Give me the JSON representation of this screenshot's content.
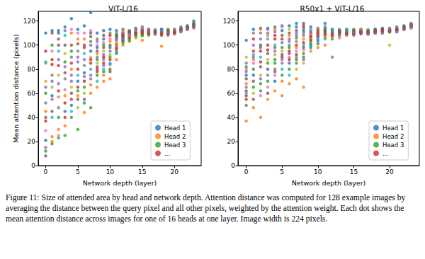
{
  "chart_data": [
    {
      "type": "scatter",
      "title": "ViT-L/16",
      "x_label": "Network depth (layer)",
      "y_label": "Mean attention distance (pixels)",
      "x": [
        0,
        1,
        2,
        3,
        4,
        5,
        6,
        7,
        8,
        9,
        10,
        11,
        12,
        13,
        14,
        15,
        16,
        17,
        18,
        19,
        20,
        21,
        22,
        23
      ],
      "xlim": [
        -1.15,
        24.15
      ],
      "xticks": [
        0,
        5,
        10,
        15,
        20
      ],
      "ylim": [
        0,
        128
      ],
      "yticks": [
        0,
        20,
        40,
        60,
        80,
        100,
        120
      ],
      "grid": false,
      "legend": "lower right",
      "series": [
        {
          "name": "Head 1",
          "color": "#1f77b4",
          "values": [
            110,
            112,
            112,
            115,
            122,
            113,
            116,
            127,
            110,
            112,
            113,
            112,
            113,
            112,
            114,
            115,
            113,
            112,
            113,
            112,
            113,
            115,
            116,
            120
          ]
        },
        {
          "name": "Head 2",
          "color": "#ff7f0e",
          "values": [
            85,
            20,
            30,
            33,
            80,
            58,
            44,
            60,
            65,
            70,
            72,
            88,
            100,
            103,
            106,
            104,
            108,
            109,
            99,
            108,
            110,
            112,
            113,
            114
          ]
        },
        {
          "name": "Head 3",
          "color": "#2ca02c",
          "values": [
            60,
            18,
            23,
            25,
            40,
            30,
            52,
            48,
            75,
            78,
            80,
            95,
            104,
            106,
            108,
            108,
            110,
            110,
            108,
            110,
            111,
            113,
            114,
            115
          ]
        },
        {
          "name": "...",
          "color": "#d62728",
          "values": [
            37,
            84,
            62,
            52,
            55,
            65,
            70,
            85,
            80,
            85,
            88,
            100,
            107,
            108,
            110,
            110,
            111,
            111,
            110,
            111,
            112,
            114,
            115,
            116
          ]
        },
        {
          "color": "#9467bd",
          "values": [
            15,
            55,
            88,
            82,
            75,
            86,
            88,
            100,
            90,
            92,
            95,
            104,
            110,
            110,
            111,
            112,
            112,
            112,
            111,
            109,
            110,
            112,
            113,
            117
          ]
        },
        {
          "color": "#8c564b",
          "values": [
            8,
            110,
            105,
            100,
            100,
            101,
            100,
            107,
            95,
            98,
            100,
            108,
            109,
            111,
            112,
            111,
            109,
            110,
            112,
            112,
            111,
            113,
            114,
            118
          ]
        },
        {
          "color": "#e377c2",
          "values": [
            29,
            95,
            25,
            63,
            113,
            110,
            110,
            112,
            100,
            102,
            105,
            110,
            105,
            107,
            109,
            113,
            113,
            113,
            109,
            110,
            109,
            111,
            115,
            115
          ]
        },
        {
          "color": "#7f7f7f",
          "values": [
            52,
            75,
            48,
            72,
            90,
            95,
            83,
            72,
            105,
            88,
            110,
            98,
            108,
            109,
            113,
            109,
            110,
            111,
            111,
            111,
            112,
            114,
            113,
            116
          ]
        },
        {
          "color": "#bcbd22",
          "values": [
            70,
            65,
            75,
            93,
            65,
            48,
            60,
            90,
            85,
            95,
            92,
            102,
            111,
            105,
            107,
            110,
            111,
            109,
            110,
            112,
            111,
            113,
            114,
            117
          ]
        },
        {
          "color": "#17becf",
          "values": [
            86,
            40,
            95,
            108,
            45,
            75,
            93,
            80,
            70,
            80,
            85,
            106,
            103,
            112,
            111,
            112,
            112,
            112,
            112,
            110,
            110,
            112,
            116,
            116
          ]
        },
        {
          "color": "#1f77b4",
          "values": [
            21,
            58,
            110,
            45,
            50,
            70,
            77,
            95,
            98,
            105,
            98,
            93,
            106,
            110,
            110,
            111,
            110,
            110,
            113,
            109,
            112,
            113,
            114,
            115
          ]
        },
        {
          "color": "#ff7f0e",
          "values": [
            45,
            24,
            57,
            58,
            110,
            105,
            105,
            67,
            93,
            75,
            103,
            101,
            112,
            108,
            112,
            114,
            111,
            111,
            110,
            111,
            113,
            114,
            113,
            117
          ]
        },
        {
          "color": "#2ca02c",
          "values": [
            12,
            100,
            40,
            86,
            95,
            62,
            65,
            103,
            88,
            100,
            90,
            109,
            102,
            104,
            108,
            108,
            109,
            112,
            111,
            113,
            111,
            112,
            115,
            118
          ]
        },
        {
          "color": "#d62728",
          "values": [
            95,
            88,
            83,
            40,
            85,
            80,
            98,
            88,
            78,
            90,
            108,
            97,
            108,
            111,
            110,
            110,
            112,
            110,
            109,
            110,
            110,
            113,
            114,
            116
          ]
        },
        {
          "color": "#9467bd",
          "values": [
            65,
            70,
            68,
            112,
            70,
            90,
            74,
            75,
            103,
            83,
            84,
            105,
            110,
            109,
            113,
            113,
            113,
            109,
            112,
            111,
            112,
            111,
            113,
            115
          ]
        },
        {
          "color": "#8c564b",
          "values": [
            40,
            45,
            100,
            77,
            60,
            55,
            55,
            110,
            82,
            108,
            78,
            107,
            104,
            106,
            109,
            112,
            110,
            111,
            110,
            112,
            111,
            113,
            115,
            117
          ]
        }
      ]
    },
    {
      "type": "scatter",
      "title": "R50x1 + ViT-L/16",
      "x_label": "Network depth (layer)",
      "x": [
        0,
        1,
        2,
        3,
        4,
        5,
        6,
        7,
        8,
        9,
        10,
        11,
        12,
        13,
        14,
        15,
        16,
        17,
        18,
        19,
        20,
        21,
        22,
        23
      ],
      "xlim": [
        -1.15,
        24.15
      ],
      "xticks": [
        0,
        5,
        10,
        15,
        20
      ],
      "ylim": [
        0,
        128
      ],
      "yticks": [
        0,
        20,
        40,
        60,
        80,
        100,
        120
      ],
      "grid": false,
      "legend": "lower right",
      "series": [
        {
          "name": "Head 1",
          "color": "#1f77b4",
          "values": [
            104,
            113,
            114,
            114,
            115,
            116,
            116,
            118,
            118,
            115,
            114,
            118,
            113,
            112,
            113,
            112,
            113,
            112,
            113,
            114,
            114,
            115,
            116,
            118
          ]
        },
        {
          "name": "Head 2",
          "color": "#ff7f0e",
          "values": [
            37,
            48,
            40,
            55,
            62,
            58,
            68,
            72,
            65,
            95,
            98,
            100,
            111,
            106,
            108,
            108,
            110,
            109,
            110,
            110,
            111,
            112,
            113,
            114
          ]
        },
        {
          "name": "Head 3",
          "color": "#2ca02c",
          "values": [
            50,
            80,
            68,
            85,
            88,
            75,
            80,
            85,
            90,
            100,
            105,
            106,
            105,
            109,
            110,
            110,
            111,
            110,
            111,
            112,
            112,
            113,
            114,
            115
          ]
        },
        {
          "name": "...",
          "color": "#d62728",
          "values": [
            58,
            95,
            95,
            100,
            105,
            90,
            95,
            100,
            102,
            105,
            108,
            109,
            108,
            110,
            111,
            111,
            112,
            111,
            112,
            113,
            113,
            114,
            115,
            116
          ]
        },
        {
          "color": "#9467bd",
          "values": [
            65,
            100,
            105,
            110,
            111,
            102,
            105,
            108,
            110,
            108,
            110,
            112,
            110,
            111,
            112,
            109,
            110,
            112,
            110,
            111,
            112,
            112,
            113,
            117
          ]
        },
        {
          "color": "#8c564b",
          "values": [
            72,
            70,
            82,
            93,
            98,
            108,
            110,
            112,
            114,
            110,
            112,
            111,
            112,
            112,
            110,
            112,
            111,
            110,
            111,
            112,
            111,
            113,
            114,
            116
          ]
        },
        {
          "color": "#e377c2",
          "values": [
            80,
            85,
            58,
            65,
            75,
            115,
            90,
            95,
            96,
            113,
            106,
            108,
            109,
            108,
            111,
            110,
            109,
            113,
            112,
            110,
            113,
            111,
            115,
            115
          ]
        },
        {
          "color": "#7f7f7f",
          "values": [
            85,
            110,
            110,
            75,
            80,
            85,
            100,
            103,
            108,
            103,
            109,
            114,
            90,
            111,
            109,
            111,
            112,
            111,
            110,
            113,
            112,
            114,
            113,
            116
          ]
        },
        {
          "color": "#bcbd22",
          "values": [
            90,
            60,
            75,
            88,
            92,
            95,
            113,
            80,
            85,
            106,
            111,
            110,
            107,
            110,
            112,
            112,
            111,
            109,
            111,
            112,
            100,
            113,
            114,
            117
          ]
        },
        {
          "color": "#17becf",
          "values": [
            60,
            92,
            90,
            105,
            100,
            80,
            75,
            90,
            100,
            112,
            103,
            105,
            113,
            113,
            113,
            110,
            110,
            112,
            112,
            111,
            111,
            112,
            116,
            116
          ]
        },
        {
          "color": "#1f77b4",
          "values": [
            75,
            75,
            100,
            80,
            70,
            112,
            85,
            115,
            112,
            98,
            107,
            113,
            110,
            109,
            110,
            109,
            112,
            110,
            113,
            113,
            112,
            113,
            114,
            115
          ]
        },
        {
          "color": "#ff7f0e",
          "values": [
            68,
            88,
            113,
            108,
            113,
            70,
            108,
            98,
            105,
            109,
            113,
            107,
            106,
            112,
            111,
            111,
            113,
            111,
            110,
            112,
            113,
            114,
            113,
            117
          ]
        },
        {
          "color": "#2ca02c",
          "values": [
            82,
            65,
            62,
            70,
            85,
            98,
            98,
            106,
            93,
            101,
            101,
            112,
            112,
            110,
            112,
            113,
            111,
            112,
            111,
            111,
            111,
            112,
            115,
            116
          ]
        },
        {
          "color": "#d62728",
          "values": [
            55,
            105,
            86,
            96,
            108,
            105,
            88,
            92,
            116,
            107,
            110,
            109,
            108,
            111,
            109,
            110,
            110,
            110,
            112,
            112,
            112,
            113,
            114,
            116
          ]
        },
        {
          "color": "#9467bd",
          "values": [
            78,
            90,
            72,
            113,
            95,
            88,
            103,
            110,
            88,
            111,
            104,
            115,
            111,
            108,
            111,
            111,
            112,
            109,
            110,
            110,
            113,
            111,
            113,
            115
          ]
        },
        {
          "color": "#8c564b",
          "values": [
            62,
            55,
            98,
            60,
            78,
            92,
            93,
            88,
            98,
            104,
            112,
            111,
            109,
            112,
            110,
            112,
            111,
            111,
            111,
            113,
            112,
            113,
            115,
            117
          ]
        }
      ]
    }
  ],
  "caption": "Figure 11: Size of attended area by head and network depth. Attention distance was computed for 128 example images by averaging the distance between the query pixel and all other pixels, weighted by the attention weight. Each dot shows the mean attention distance across images for one of 16 heads at one layer. Image width is 224 pixels."
}
